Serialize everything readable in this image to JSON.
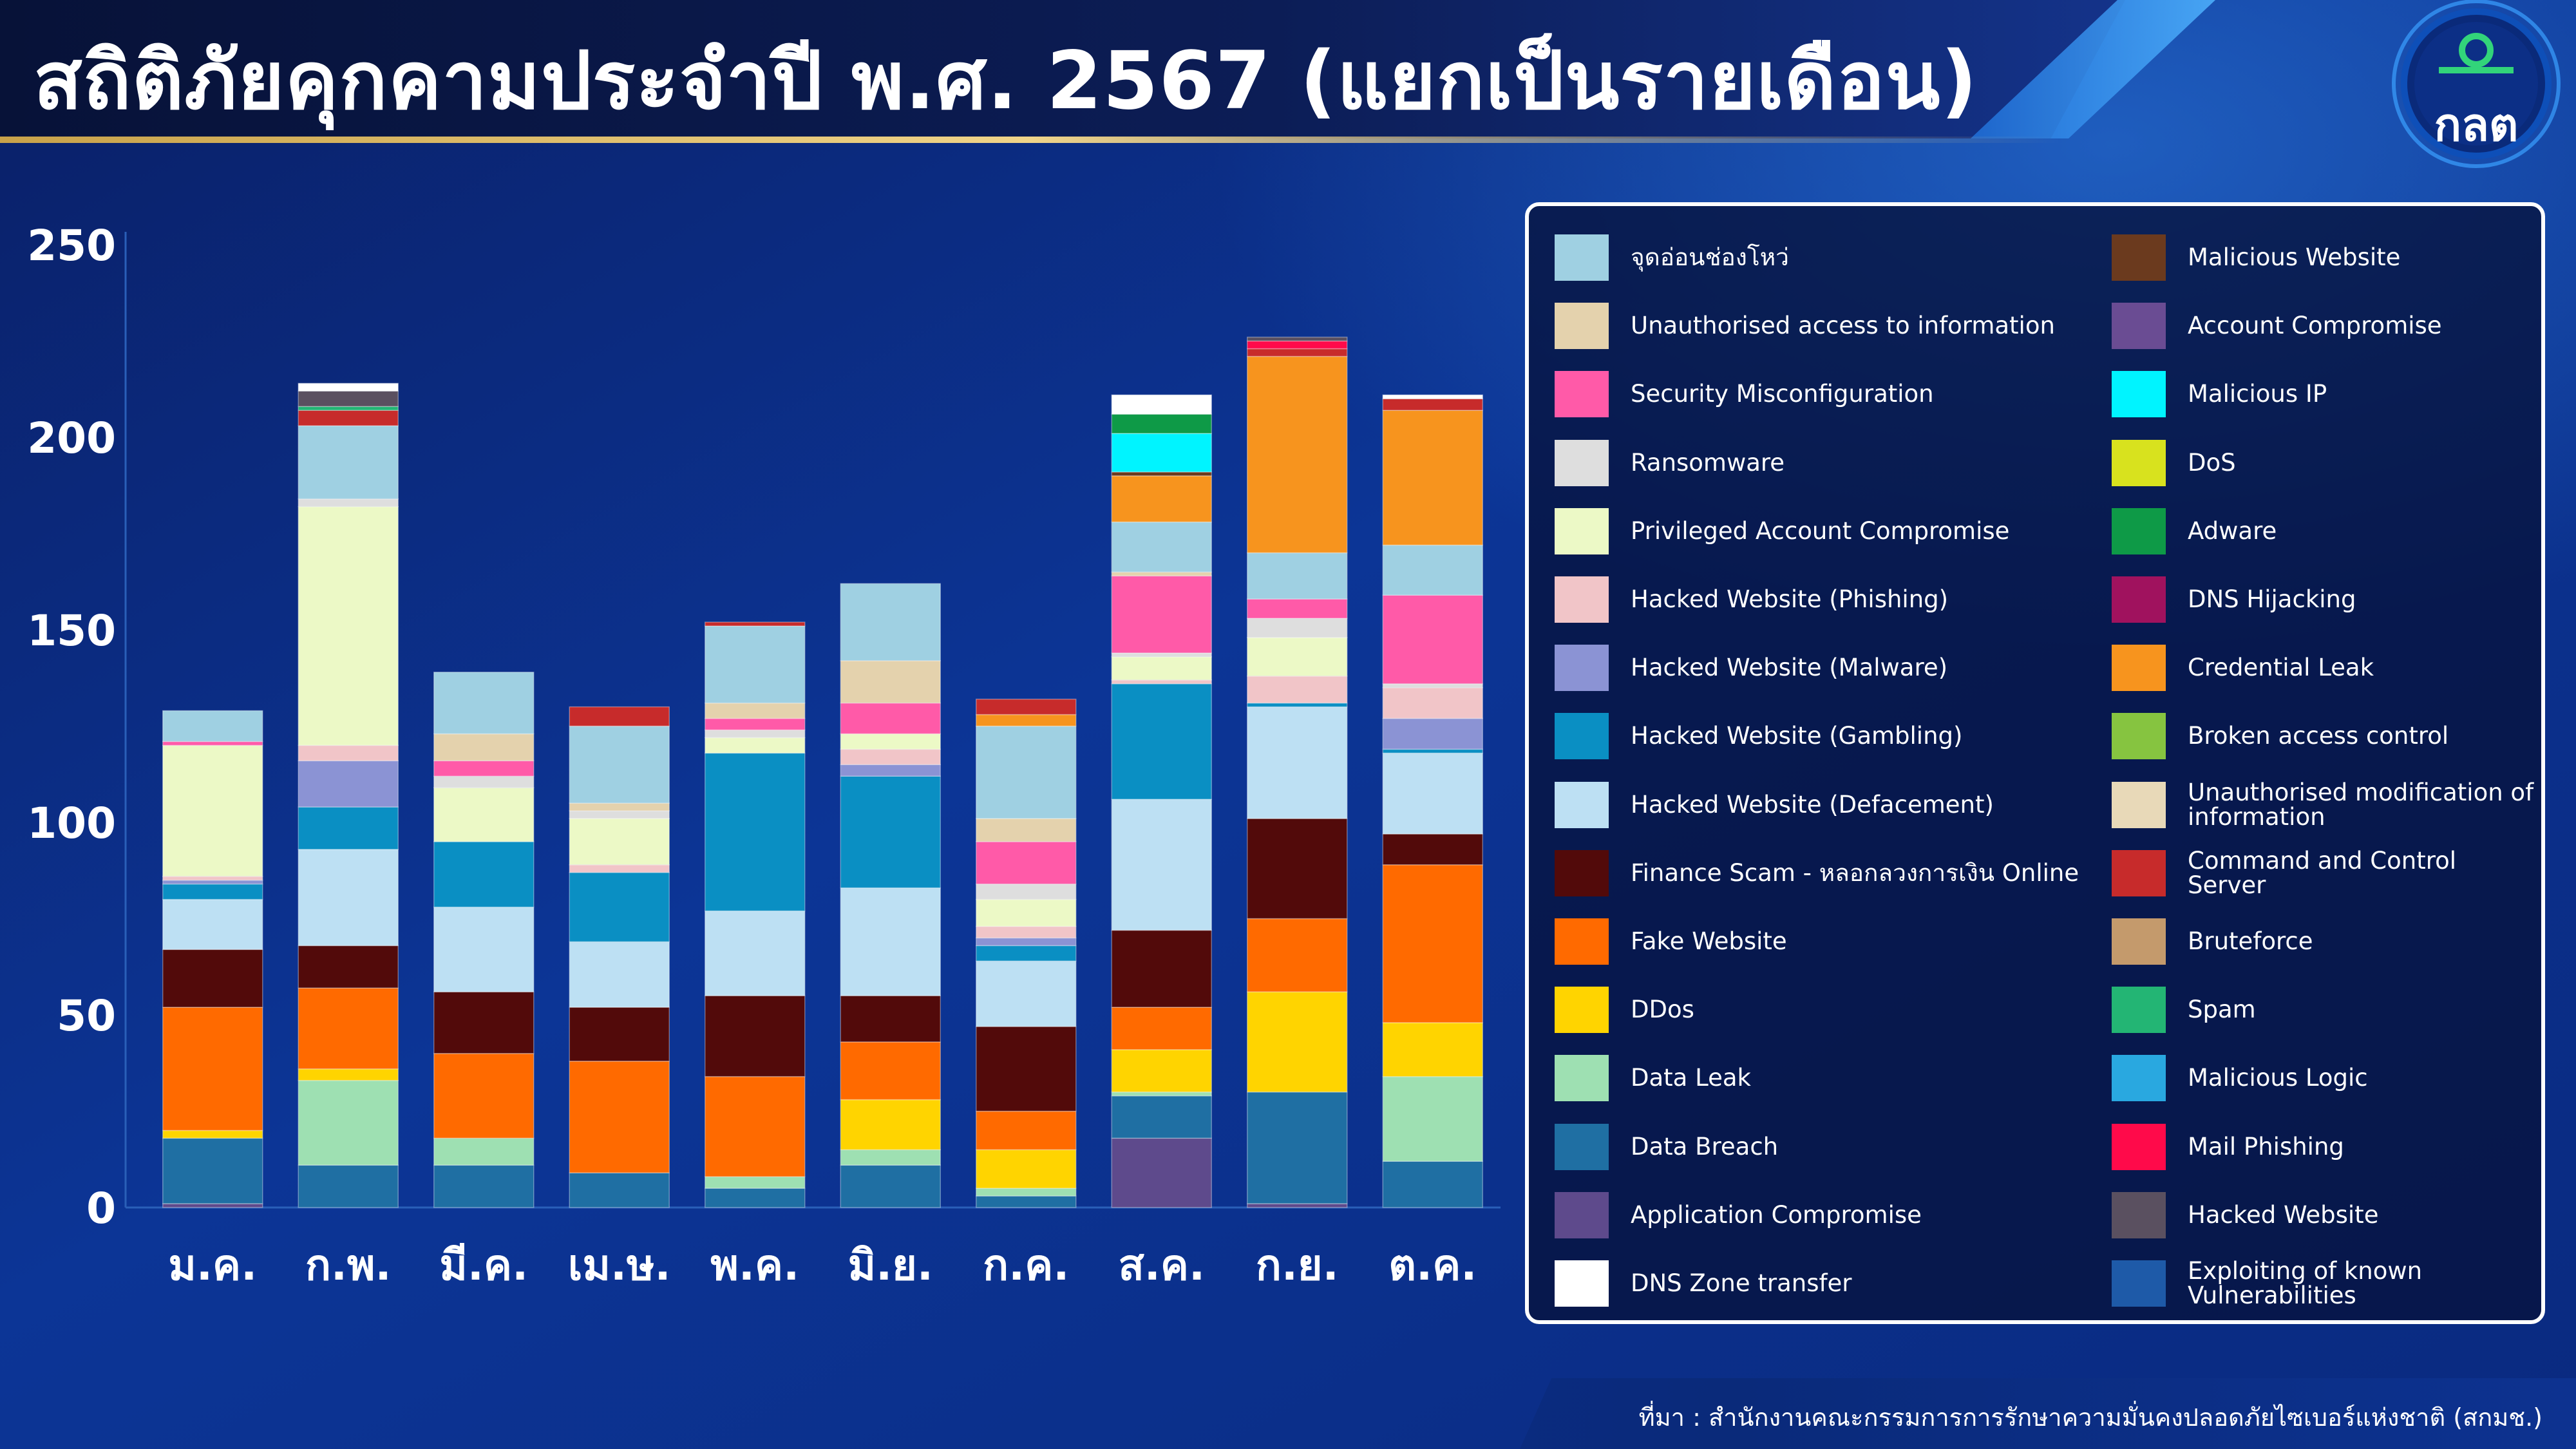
{
  "header": {
    "title": "สถิติภัยคุกคามประจำปี พ.ศ. 2567 (แยกเป็นรายเดือน)",
    "logo_text": "กลต",
    "logo_icon": "sec-thailand-logo"
  },
  "footer": {
    "source": "ที่มา : สำนักงานคณะกรรมการการรักษาความมั่นคงปลอดภัยไซเบอร์แห่งชาติ (สกมช.)"
  },
  "colors": {
    "background": "#0b2a78",
    "axis_text": "#ffffff"
  },
  "chart_data": {
    "type": "bar",
    "stacked": true,
    "title": "สถิติภัยคุกคามประจำปี พ.ศ. 2567 (แยกเป็นรายเดือน)",
    "xlabel": "",
    "ylabel": "",
    "ylim": [
      0,
      250
    ],
    "yticks": [
      0,
      50,
      100,
      150,
      200,
      250
    ],
    "grid": false,
    "legend_position": "right",
    "categories": [
      "ม.ค.",
      "ก.พ.",
      "มี.ค.",
      "เม.ษ.",
      "พ.ค.",
      "มิ.ย.",
      "ก.ค.",
      "ส.ค.",
      "ก.ย.",
      "ต.ค."
    ],
    "series": [
      {
        "name": "Exploiting of known Vulnerabilities",
        "color": "#1e5aa8",
        "values": [
          0,
          0,
          0,
          0,
          0,
          0,
          0,
          0,
          0,
          0
        ]
      },
      {
        "name": "Application Compromise",
        "color": "#5e4a8c",
        "values": [
          1,
          0,
          0,
          0,
          0,
          0,
          0,
          18,
          1,
          0
        ]
      },
      {
        "name": "Data Breach",
        "color": "#1f6fa3",
        "values": [
          17,
          11,
          11,
          9,
          5,
          11,
          3,
          11,
          29,
          12
        ]
      },
      {
        "name": "Data Leak",
        "color": "#9ee0b2",
        "values": [
          0,
          22,
          7,
          0,
          3,
          4,
          2,
          1,
          0,
          22
        ]
      },
      {
        "name": "DDos",
        "color": "#ffd400",
        "values": [
          2,
          3,
          0,
          0,
          0,
          13,
          10,
          11,
          26,
          14
        ]
      },
      {
        "name": "Fake Website",
        "color": "#ff6a00",
        "values": [
          32,
          21,
          22,
          29,
          26,
          15,
          10,
          11,
          19,
          41
        ]
      },
      {
        "name": "Finance Scam - หลอกลวงการเงิน Online",
        "color": "#520a0a",
        "values": [
          15,
          11,
          16,
          14,
          21,
          12,
          22,
          20,
          26,
          8
        ]
      },
      {
        "name": "Hacked Website (Defacement)",
        "color": "#bde0f3",
        "values": [
          13,
          25,
          22,
          17,
          22,
          28,
          17,
          34,
          29,
          21
        ]
      },
      {
        "name": "Hacked Website (Gambling)",
        "color": "#0a8fc3",
        "values": [
          4,
          11,
          17,
          18,
          41,
          29,
          4,
          30,
          1,
          1
        ]
      },
      {
        "name": "Hacked Website (Malware)",
        "color": "#8b93d4",
        "values": [
          1,
          12,
          0,
          0,
          0,
          3,
          2,
          0,
          0,
          8
        ]
      },
      {
        "name": "Hacked Website (Phishing)",
        "color": "#f1c5c8",
        "values": [
          1,
          4,
          0,
          2,
          0,
          4,
          3,
          1,
          7,
          8
        ]
      },
      {
        "name": "Privileged Account Compromise",
        "color": "#ecf9c6",
        "values": [
          34,
          62,
          14,
          12,
          4,
          4,
          7,
          6,
          10,
          0
        ]
      },
      {
        "name": "Ransomware",
        "color": "#dedede",
        "values": [
          0,
          2,
          3,
          2,
          2,
          0,
          4,
          1,
          5,
          1
        ]
      },
      {
        "name": "Security Misconfiguration",
        "color": "#ff5aa8",
        "values": [
          1,
          0,
          4,
          0,
          3,
          8,
          11,
          20,
          5,
          23
        ]
      },
      {
        "name": "Unauthorised access to information",
        "color": "#e4d2ad",
        "values": [
          0,
          0,
          7,
          2,
          4,
          11,
          6,
          1,
          0,
          0
        ]
      },
      {
        "name": "จุดอ่อนช่องโหว่",
        "color": "#9fd0e2",
        "values": [
          8,
          19,
          16,
          20,
          20,
          20,
          24,
          13,
          12,
          13
        ]
      },
      {
        "name": "Credential Leak",
        "color": "#f7941e",
        "values": [
          0,
          0,
          0,
          0,
          0,
          0,
          3,
          12,
          51,
          35
        ]
      },
      {
        "name": "Command and Control Server",
        "color": "#c72b2b",
        "values": [
          0,
          4,
          0,
          5,
          1,
          0,
          4,
          0,
          2,
          3
        ]
      },
      {
        "name": "Malicious Website",
        "color": "#6b3a1e",
        "values": [
          0,
          0,
          0,
          0,
          0,
          0,
          0,
          1,
          0,
          0
        ]
      },
      {
        "name": "Account Compromise",
        "color": "#6a4c93",
        "values": [
          0,
          0,
          0,
          0,
          0,
          0,
          0,
          0,
          0,
          0
        ]
      },
      {
        "name": "Malicious IP",
        "color": "#00f4ff",
        "values": [
          0,
          0,
          0,
          0,
          0,
          0,
          0,
          10,
          0,
          0
        ]
      },
      {
        "name": "DoS",
        "color": "#d8e21e",
        "values": [
          0,
          0,
          0,
          0,
          0,
          0,
          0,
          0,
          0,
          0
        ]
      },
      {
        "name": "Adware",
        "color": "#0e9a47",
        "values": [
          0,
          0,
          0,
          0,
          0,
          0,
          0,
          5,
          0,
          0
        ]
      },
      {
        "name": "DNS Hijacking",
        "color": "#a0125e",
        "values": [
          0,
          0,
          0,
          0,
          0,
          0,
          0,
          0,
          0,
          0
        ]
      },
      {
        "name": "Broken access control",
        "color": "#86c440",
        "values": [
          0,
          0,
          0,
          0,
          0,
          0,
          0,
          0,
          0,
          0
        ]
      },
      {
        "name": "Unauthorised modification of information",
        "color": "#e8d9b8",
        "values": [
          0,
          0,
          0,
          0,
          0,
          0,
          0,
          0,
          0,
          0
        ]
      },
      {
        "name": "Bruteforce",
        "color": "#c49a6c",
        "values": [
          0,
          0,
          0,
          0,
          0,
          0,
          0,
          0,
          0,
          0
        ]
      },
      {
        "name": "Spam",
        "color": "#23b574",
        "values": [
          0,
          1,
          0,
          0,
          0,
          0,
          0,
          0,
          0,
          0
        ]
      },
      {
        "name": "Malicious Logic",
        "color": "#29a8e0",
        "values": [
          0,
          0,
          0,
          0,
          0,
          0,
          0,
          0,
          0,
          0
        ]
      },
      {
        "name": "Mail Phishing",
        "color": "#ff0a4a",
        "values": [
          0,
          0,
          0,
          0,
          0,
          0,
          0,
          0,
          2,
          0
        ]
      },
      {
        "name": "Hacked Website",
        "color": "#5a5060",
        "values": [
          0,
          4,
          0,
          0,
          0,
          0,
          0,
          0,
          1,
          0
        ]
      },
      {
        "name": "DNS Zone transfer",
        "color": "#ffffff",
        "values": [
          0,
          2,
          0,
          0,
          0,
          0,
          0,
          5,
          0,
          1
        ]
      }
    ]
  },
  "legend": {
    "left": [
      {
        "label": "จุดอ่อนช่องโหว่",
        "color": "#9fd0e2"
      },
      {
        "label": "Unauthorised access to information",
        "color": "#e4d2ad"
      },
      {
        "label": "Security Misconfiguration",
        "color": "#ff5aa8"
      },
      {
        "label": "Ransomware",
        "color": "#dedede"
      },
      {
        "label": "Privileged Account Compromise",
        "color": "#ecf9c6"
      },
      {
        "label": "Hacked Website (Phishing)",
        "color": "#f1c5c8"
      },
      {
        "label": "Hacked Website (Malware)",
        "color": "#8b93d4"
      },
      {
        "label": "Hacked Website (Gambling)",
        "color": "#0a8fc3"
      },
      {
        "label": "Hacked Website (Defacement)",
        "color": "#bde0f3"
      },
      {
        "label": "Finance Scam - หลอกลวงการเงิน Online",
        "color": "#520a0a"
      },
      {
        "label": "Fake Website",
        "color": "#ff6a00"
      },
      {
        "label": "DDos",
        "color": "#ffd400"
      },
      {
        "label": "Data Leak",
        "color": "#9ee0b2"
      },
      {
        "label": "Data Breach",
        "color": "#1f6fa3"
      },
      {
        "label": "Application Compromise",
        "color": "#5e4a8c"
      },
      {
        "label": "DNS Zone transfer",
        "color": "#ffffff"
      }
    ],
    "right": [
      {
        "label": "Malicious Website",
        "color": "#6b3a1e"
      },
      {
        "label": "Account Compromise",
        "color": "#6a4c93"
      },
      {
        "label": "Malicious IP",
        "color": "#00f4ff"
      },
      {
        "label": "DoS",
        "color": "#d8e21e"
      },
      {
        "label": "Adware",
        "color": "#0e9a47"
      },
      {
        "label": "DNS Hijacking",
        "color": "#a0125e"
      },
      {
        "label": "Credential Leak",
        "color": "#f7941e"
      },
      {
        "label": "Broken access control",
        "color": "#86c440"
      },
      {
        "label": "Unauthorised modification of information",
        "color": "#e8d9b8"
      },
      {
        "label": "Command and Control Server",
        "color": "#c72b2b"
      },
      {
        "label": "Bruteforce",
        "color": "#c49a6c"
      },
      {
        "label": "Spam",
        "color": "#23b574"
      },
      {
        "label": "Malicious Logic",
        "color": "#29a8e0"
      },
      {
        "label": "Mail Phishing",
        "color": "#ff0a4a"
      },
      {
        "label": "Hacked Website",
        "color": "#5a5060"
      },
      {
        "label": "Exploiting of known Vulnerabilities",
        "color": "#1e5aa8"
      }
    ]
  }
}
